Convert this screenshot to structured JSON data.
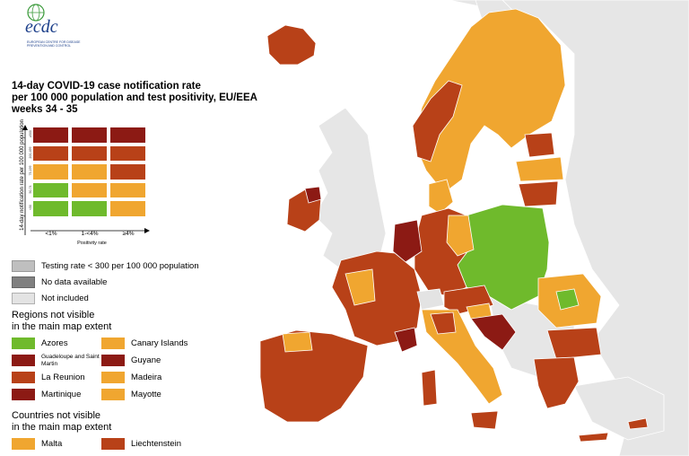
{
  "colors": {
    "dark_red": "#8c1a14",
    "red": "#b84118",
    "orange": "#f0a630",
    "green": "#6fba2c",
    "grey_testing": "#bfbfbf",
    "grey_nodata": "#808080",
    "grey_not_included": "#e3e3e3",
    "sea": "#ffffff",
    "non_eu_land": "#e6e6e6"
  },
  "logo": {
    "text": "ecdc",
    "subtitle": "EUROPEAN CENTRE FOR DISEASE PREVENTION AND CONTROL",
    "icon": "globe-icon"
  },
  "title": {
    "line1": "14-day COVID-19 case notification rate",
    "line2": "per 100 000 population and test positivity, EU/EEA",
    "line3": "weeks 34 - 35"
  },
  "matrix": {
    "y_axis_label": "14-day notification rate per 100 000 population",
    "x_axis_label": "Positivity rate",
    "x_ticks": [
      "<1%",
      "1-<4%",
      "≥4%"
    ],
    "y_ticks": [
      "≥500",
      "200-499",
      "75-199",
      "50-74",
      "<50"
    ],
    "rows": [
      [
        "dark_red",
        "dark_red",
        "dark_red"
      ],
      [
        "red",
        "red",
        "red"
      ],
      [
        "orange",
        "orange",
        "red"
      ],
      [
        "green",
        "orange",
        "orange"
      ],
      [
        "green",
        "green",
        "orange"
      ]
    ]
  },
  "legend": {
    "testing": "Testing rate < 300 per 100 000 population",
    "no_data": "No data available",
    "not_included": "Not included"
  },
  "regions": {
    "heading_line1": "Regions not visible",
    "heading_line2": "in the main map extent",
    "items": [
      {
        "label": "Azores",
        "color": "green"
      },
      {
        "label": "Canary Islands",
        "color": "orange"
      },
      {
        "label": "Guadeloupe and Saint Martin",
        "color": "dark_red"
      },
      {
        "label": "Guyane",
        "color": "dark_red"
      },
      {
        "label": "La Reunion",
        "color": "red"
      },
      {
        "label": "Madeira",
        "color": "orange"
      },
      {
        "label": "Martinique",
        "color": "dark_red"
      },
      {
        "label": "Mayotte",
        "color": "orange"
      }
    ]
  },
  "countries": {
    "heading_line1": "Countries not visible",
    "heading_line2": "in the main map extent",
    "items": [
      {
        "label": "Malta",
        "color": "orange"
      },
      {
        "label": "Liechtenstein",
        "color": "red"
      }
    ]
  }
}
